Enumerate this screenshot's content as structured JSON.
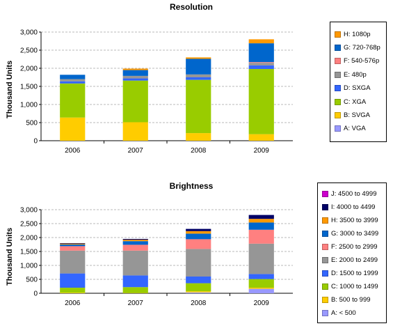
{
  "charts": [
    {
      "id": "resolution",
      "chart_data": {
        "type": "bar",
        "stacked": true,
        "title": "Resolution",
        "xlabel": "",
        "ylabel": "Thousand Units",
        "ylim": [
          0,
          3000
        ],
        "yticks": [
          0,
          500,
          1000,
          1500,
          2000,
          2500,
          3000
        ],
        "ytick_labels": [
          "0",
          "500",
          "1,000",
          "1,500",
          "2,000",
          "2,500",
          "3,000"
        ],
        "categories": [
          "2006",
          "2007",
          "2008",
          "2009"
        ],
        "grid": true,
        "legend_position": "right",
        "series": [
          {
            "name": "A: VGA",
            "color": "#9999FF",
            "values": [
              0,
              0,
              0,
              0
            ]
          },
          {
            "name": "B: SVGA",
            "color": "#FFCC00",
            "values": [
              640,
              510,
              210,
              180
            ]
          },
          {
            "name": "C: XGA",
            "color": "#99CC00",
            "values": [
              940,
              1150,
              1470,
              1800
            ]
          },
          {
            "name": "D: SXGA",
            "color": "#3366FF",
            "values": [
              60,
              60,
              70,
              100
            ]
          },
          {
            "name": "E: 480p",
            "color": "#969696",
            "values": [
              60,
              70,
              80,
              70
            ]
          },
          {
            "name": "F: 540-576p",
            "color": "#FF8080",
            "values": [
              0,
              0,
              0,
              20
            ]
          },
          {
            "name": "G: 720-768p",
            "color": "#0066CC",
            "values": [
              120,
              160,
              430,
              520
            ]
          },
          {
            "name": "H: 1080p",
            "color": "#FF9900",
            "values": [
              0,
              40,
              40,
              110
            ]
          }
        ]
      }
    },
    {
      "id": "brightness",
      "chart_data": {
        "type": "bar",
        "stacked": true,
        "title": "Brightness",
        "xlabel": "",
        "ylabel": "Thousand Units",
        "ylim": [
          0,
          3000
        ],
        "yticks": [
          0,
          500,
          1000,
          1500,
          2000,
          2500,
          3000
        ],
        "ytick_labels": [
          "0",
          "500",
          "1,000",
          "1,500",
          "2,000",
          "2,500",
          "3,000"
        ],
        "categories": [
          "2006",
          "2007",
          "2008",
          "2009"
        ],
        "grid": true,
        "legend_position": "right",
        "series": [
          {
            "name": "A: < 500",
            "color": "#9999FF",
            "values": [
              0,
              0,
              30,
              160
            ]
          },
          {
            "name": "B: 500 to 999",
            "color": "#FFCC00",
            "values": [
              20,
              10,
              40,
              40
            ]
          },
          {
            "name": "C: 1000 to 1499",
            "color": "#99CC00",
            "values": [
              180,
              210,
              290,
              310
            ]
          },
          {
            "name": "D: 1500 to 1999",
            "color": "#3366FF",
            "values": [
              510,
              420,
              240,
              180
            ]
          },
          {
            "name": "E: 2000 to 2499",
            "color": "#969696",
            "values": [
              820,
              890,
              990,
              1090
            ]
          },
          {
            "name": "F: 2500 to 2999",
            "color": "#FF8080",
            "values": [
              160,
              210,
              350,
              500
            ]
          },
          {
            "name": "G: 3000 to 3499",
            "color": "#0066CC",
            "values": [
              60,
              130,
              200,
              260
            ]
          },
          {
            "name": "H: 3500 to 3999",
            "color": "#FF9900",
            "values": [
              30,
              50,
              90,
              130
            ]
          },
          {
            "name": "I: 4000 to 4499",
            "color": "#000066",
            "values": [
              20,
              30,
              80,
              140
            ]
          },
          {
            "name": "J: 4500 to 4999",
            "color": "#CC00CC",
            "values": [
              0,
              0,
              0,
              0
            ]
          }
        ]
      }
    }
  ]
}
